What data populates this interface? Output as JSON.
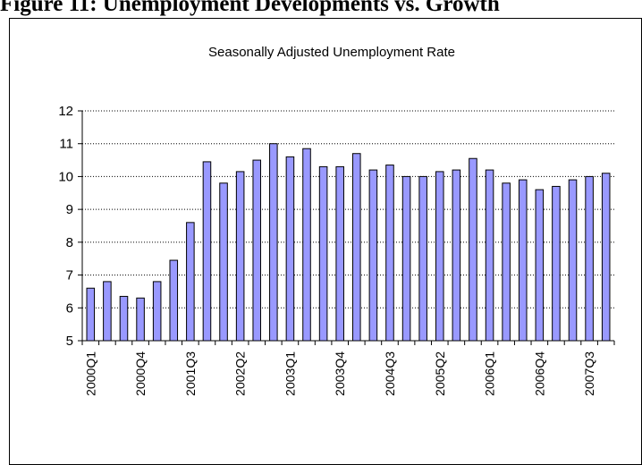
{
  "figure_title": "Figure 11: Unemployment Developments vs. Growth",
  "chart_data": {
    "type": "bar",
    "title": "Seasonally Adjusted Unemployment Rate",
    "xlabel": "",
    "ylabel": "",
    "ylim": [
      5,
      12
    ],
    "yticks": [
      5,
      6,
      7,
      8,
      9,
      10,
      11,
      12
    ],
    "grid": "horizontal dotted",
    "legend": "none",
    "bar_color": "#9999ff",
    "bar_edge": "#000000",
    "categories": [
      "2000Q1",
      "2000Q2",
      "2000Q3",
      "2000Q4",
      "2001Q1",
      "2001Q2",
      "2001Q3",
      "2001Q4",
      "2002Q1",
      "2002Q2",
      "2002Q3",
      "2002Q4",
      "2003Q1",
      "2003Q2",
      "2003Q3",
      "2003Q4",
      "2004Q1",
      "2004Q2",
      "2004Q3",
      "2004Q4",
      "2005Q1",
      "2005Q2",
      "2005Q3",
      "2005Q4",
      "2006Q1",
      "2006Q2",
      "2006Q3",
      "2006Q4",
      "2007Q1",
      "2007Q2",
      "2007Q3",
      "2007Q4"
    ],
    "x_tick_labels": [
      "2000Q1",
      "2000Q4",
      "2001Q3",
      "2002Q2",
      "2003Q1",
      "2003Q4",
      "2004Q3",
      "2005Q2",
      "2006Q1",
      "2006Q4",
      "2007Q3"
    ],
    "values": [
      6.6,
      6.8,
      6.35,
      6.3,
      6.8,
      7.45,
      8.6,
      10.45,
      9.8,
      10.15,
      10.5,
      11.0,
      10.6,
      10.85,
      10.3,
      10.3,
      10.7,
      10.2,
      10.35,
      10.0,
      10.0,
      10.15,
      10.2,
      10.55,
      10.2,
      9.8,
      9.9,
      9.6,
      9.7,
      9.9,
      10.0,
      10.1
    ]
  }
}
